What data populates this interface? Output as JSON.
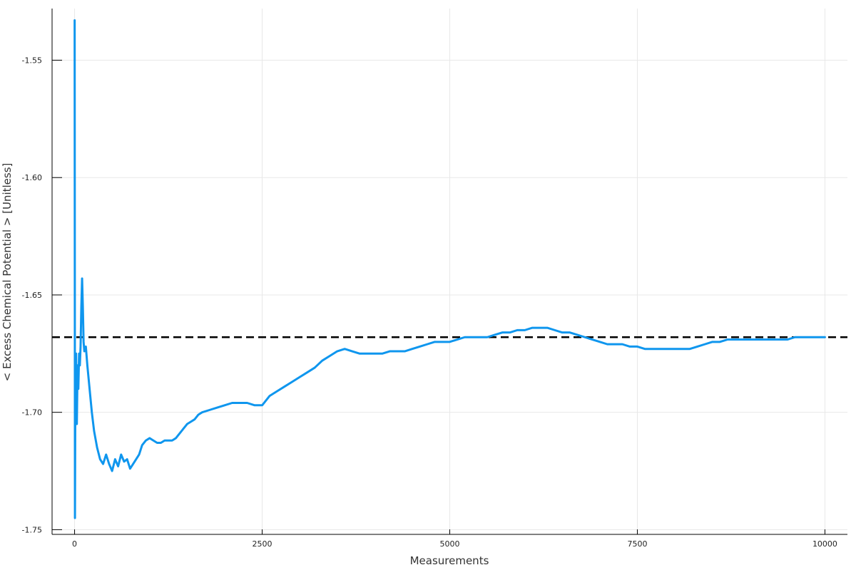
{
  "chart_data": {
    "type": "line",
    "title": "",
    "xlabel": "Measurements",
    "ylabel": "< Excess Chemical Potential > [Unitless]",
    "xlim": [
      -300,
      10300
    ],
    "ylim": [
      -1.752,
      -1.528
    ],
    "x_ticks": [
      0,
      2500,
      5000,
      7500,
      10000
    ],
    "x_tick_labels": [
      "0",
      "2500",
      "5000",
      "7500",
      "10000"
    ],
    "y_ticks": [
      -1.55,
      -1.6,
      -1.65,
      -1.7,
      -1.75
    ],
    "y_tick_labels": [
      "-1.55",
      "-1.60",
      "-1.65",
      "-1.70",
      "-1.75"
    ],
    "grid": true,
    "legend": "none",
    "colors": {
      "series": "#0f96ee",
      "reference": "#000000",
      "grid": "#e8e8e8",
      "axis": "#000000"
    },
    "reference_line": {
      "y": -1.668,
      "style": "dashed"
    },
    "series": [
      {
        "x": [
          1,
          5,
          10,
          20,
          30,
          40,
          50,
          60,
          70,
          80,
          90,
          100,
          110,
          120,
          130,
          150,
          170,
          200,
          230,
          260,
          300,
          340,
          380,
          420,
          460,
          500,
          540,
          580,
          620,
          660,
          700,
          740,
          780,
          820,
          860,
          900,
          950,
          1000,
          1050,
          1100,
          1150,
          1200,
          1250,
          1300,
          1350,
          1400,
          1450,
          1500,
          1550,
          1600,
          1650,
          1700,
          1800,
          1900,
          2000,
          2100,
          2200,
          2300,
          2400,
          2500,
          2600,
          2700,
          2800,
          2900,
          3000,
          3100,
          3200,
          3300,
          3400,
          3500,
          3600,
          3700,
          3800,
          3900,
          4000,
          4100,
          4200,
          4300,
          4400,
          4500,
          4600,
          4700,
          4800,
          4900,
          5000,
          5100,
          5200,
          5300,
          5400,
          5500,
          5600,
          5700,
          5800,
          5900,
          6000,
          6100,
          6200,
          6300,
          6400,
          6500,
          6600,
          6700,
          6800,
          6900,
          7000,
          7100,
          7200,
          7300,
          7400,
          7500,
          7600,
          7700,
          7800,
          7900,
          8000,
          8100,
          8200,
          8300,
          8400,
          8500,
          8600,
          8700,
          8800,
          8900,
          9000,
          9100,
          9200,
          9300,
          9400,
          9500,
          9600,
          9700,
          9800,
          9900,
          10000
        ],
        "y": [
          -1.533,
          -1.745,
          -1.69,
          -1.675,
          -1.705,
          -1.68,
          -1.69,
          -1.675,
          -1.68,
          -1.672,
          -1.655,
          -1.643,
          -1.655,
          -1.67,
          -1.674,
          -1.672,
          -1.68,
          -1.69,
          -1.7,
          -1.708,
          -1.715,
          -1.72,
          -1.722,
          -1.718,
          -1.722,
          -1.725,
          -1.72,
          -1.723,
          -1.718,
          -1.721,
          -1.72,
          -1.724,
          -1.722,
          -1.72,
          -1.718,
          -1.714,
          -1.712,
          -1.711,
          -1.712,
          -1.713,
          -1.713,
          -1.712,
          -1.712,
          -1.712,
          -1.711,
          -1.709,
          -1.707,
          -1.705,
          -1.704,
          -1.703,
          -1.701,
          -1.7,
          -1.699,
          -1.698,
          -1.697,
          -1.696,
          -1.696,
          -1.696,
          -1.697,
          -1.697,
          -1.693,
          -1.691,
          -1.689,
          -1.687,
          -1.685,
          -1.683,
          -1.681,
          -1.678,
          -1.676,
          -1.674,
          -1.673,
          -1.674,
          -1.675,
          -1.675,
          -1.675,
          -1.675,
          -1.674,
          -1.674,
          -1.674,
          -1.673,
          -1.672,
          -1.671,
          -1.67,
          -1.67,
          -1.67,
          -1.669,
          -1.668,
          -1.668,
          -1.668,
          -1.668,
          -1.667,
          -1.666,
          -1.666,
          -1.665,
          -1.665,
          -1.664,
          -1.664,
          -1.664,
          -1.665,
          -1.666,
          -1.666,
          -1.667,
          -1.668,
          -1.669,
          -1.67,
          -1.671,
          -1.671,
          -1.671,
          -1.672,
          -1.672,
          -1.673,
          -1.673,
          -1.673,
          -1.673,
          -1.673,
          -1.673,
          -1.673,
          -1.672,
          -1.671,
          -1.67,
          -1.67,
          -1.669,
          -1.669,
          -1.669,
          -1.669,
          -1.669,
          -1.669,
          -1.669,
          -1.669,
          -1.669,
          -1.668,
          -1.668,
          -1.668,
          -1.668,
          -1.668
        ]
      }
    ]
  }
}
